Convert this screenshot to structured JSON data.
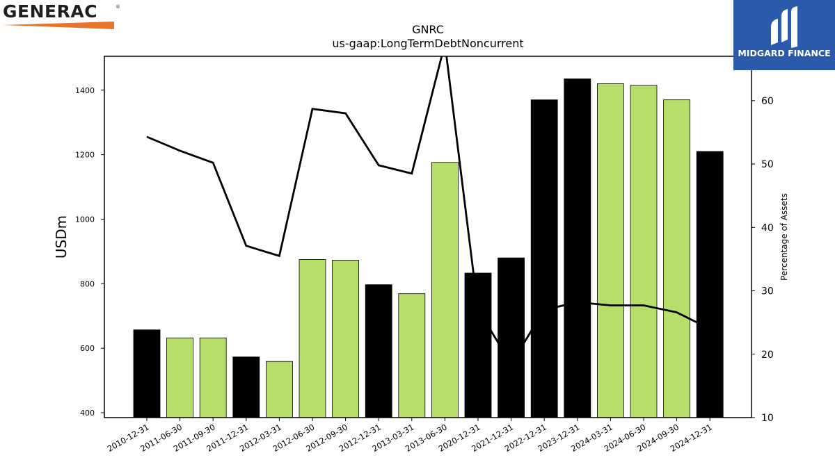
{
  "chart_data": {
    "type": "bar",
    "title": "GNRC",
    "subtitle": "us-gaap:LongTermDebtNoncurrent",
    "ylabel": "USDm",
    "y2label": "Percentage of Assets",
    "ylim": [
      385,
      1505
    ],
    "y2lim": [
      10,
      67
    ],
    "yticks": [
      400,
      600,
      800,
      1000,
      1200,
      1400
    ],
    "y2ticks": [
      10,
      20,
      30,
      40,
      50,
      60
    ],
    "categories": [
      "2010-12-31",
      "2011-06-30",
      "2011-09-30",
      "2011-12-31",
      "2012-03-31",
      "2012-06-30",
      "2012-09-30",
      "2012-12-31",
      "2013-03-31",
      "2013-06-30",
      "2020-12-31",
      "2021-12-31",
      "2022-12-31",
      "2023-12-31",
      "2024-03-31",
      "2024-06-30",
      "2024-09-30",
      "2024-12-31"
    ],
    "values": [
      657,
      632,
      632,
      573,
      559,
      875,
      873,
      797,
      769,
      1176,
      833,
      880,
      1370,
      1435,
      1420,
      1415,
      1370,
      1210
    ],
    "bar_colors": [
      "#000000",
      "#b5de6b",
      "#b5de6b",
      "#000000",
      "#b5de6b",
      "#b5de6b",
      "#b5de6b",
      "#000000",
      "#b5de6b",
      "#b5de6b",
      "#000000",
      "#000000",
      "#000000",
      "#000000",
      "#b5de6b",
      "#b5de6b",
      "#b5de6b",
      "#000000"
    ],
    "line": {
      "values": [
        54.3,
        52.1,
        50.2,
        37.1,
        35.5,
        58.7,
        58.0,
        49.8,
        48.5,
        69.0,
        27.0,
        18.5,
        27.0,
        28.2,
        27.7,
        27.7,
        26.6,
        24.0
      ],
      "color": "#000000"
    },
    "grid": false
  },
  "logos": {
    "left_brand": "GENERAC",
    "left_reg": "®",
    "right_brand": "MIDGARD FINANCE"
  }
}
